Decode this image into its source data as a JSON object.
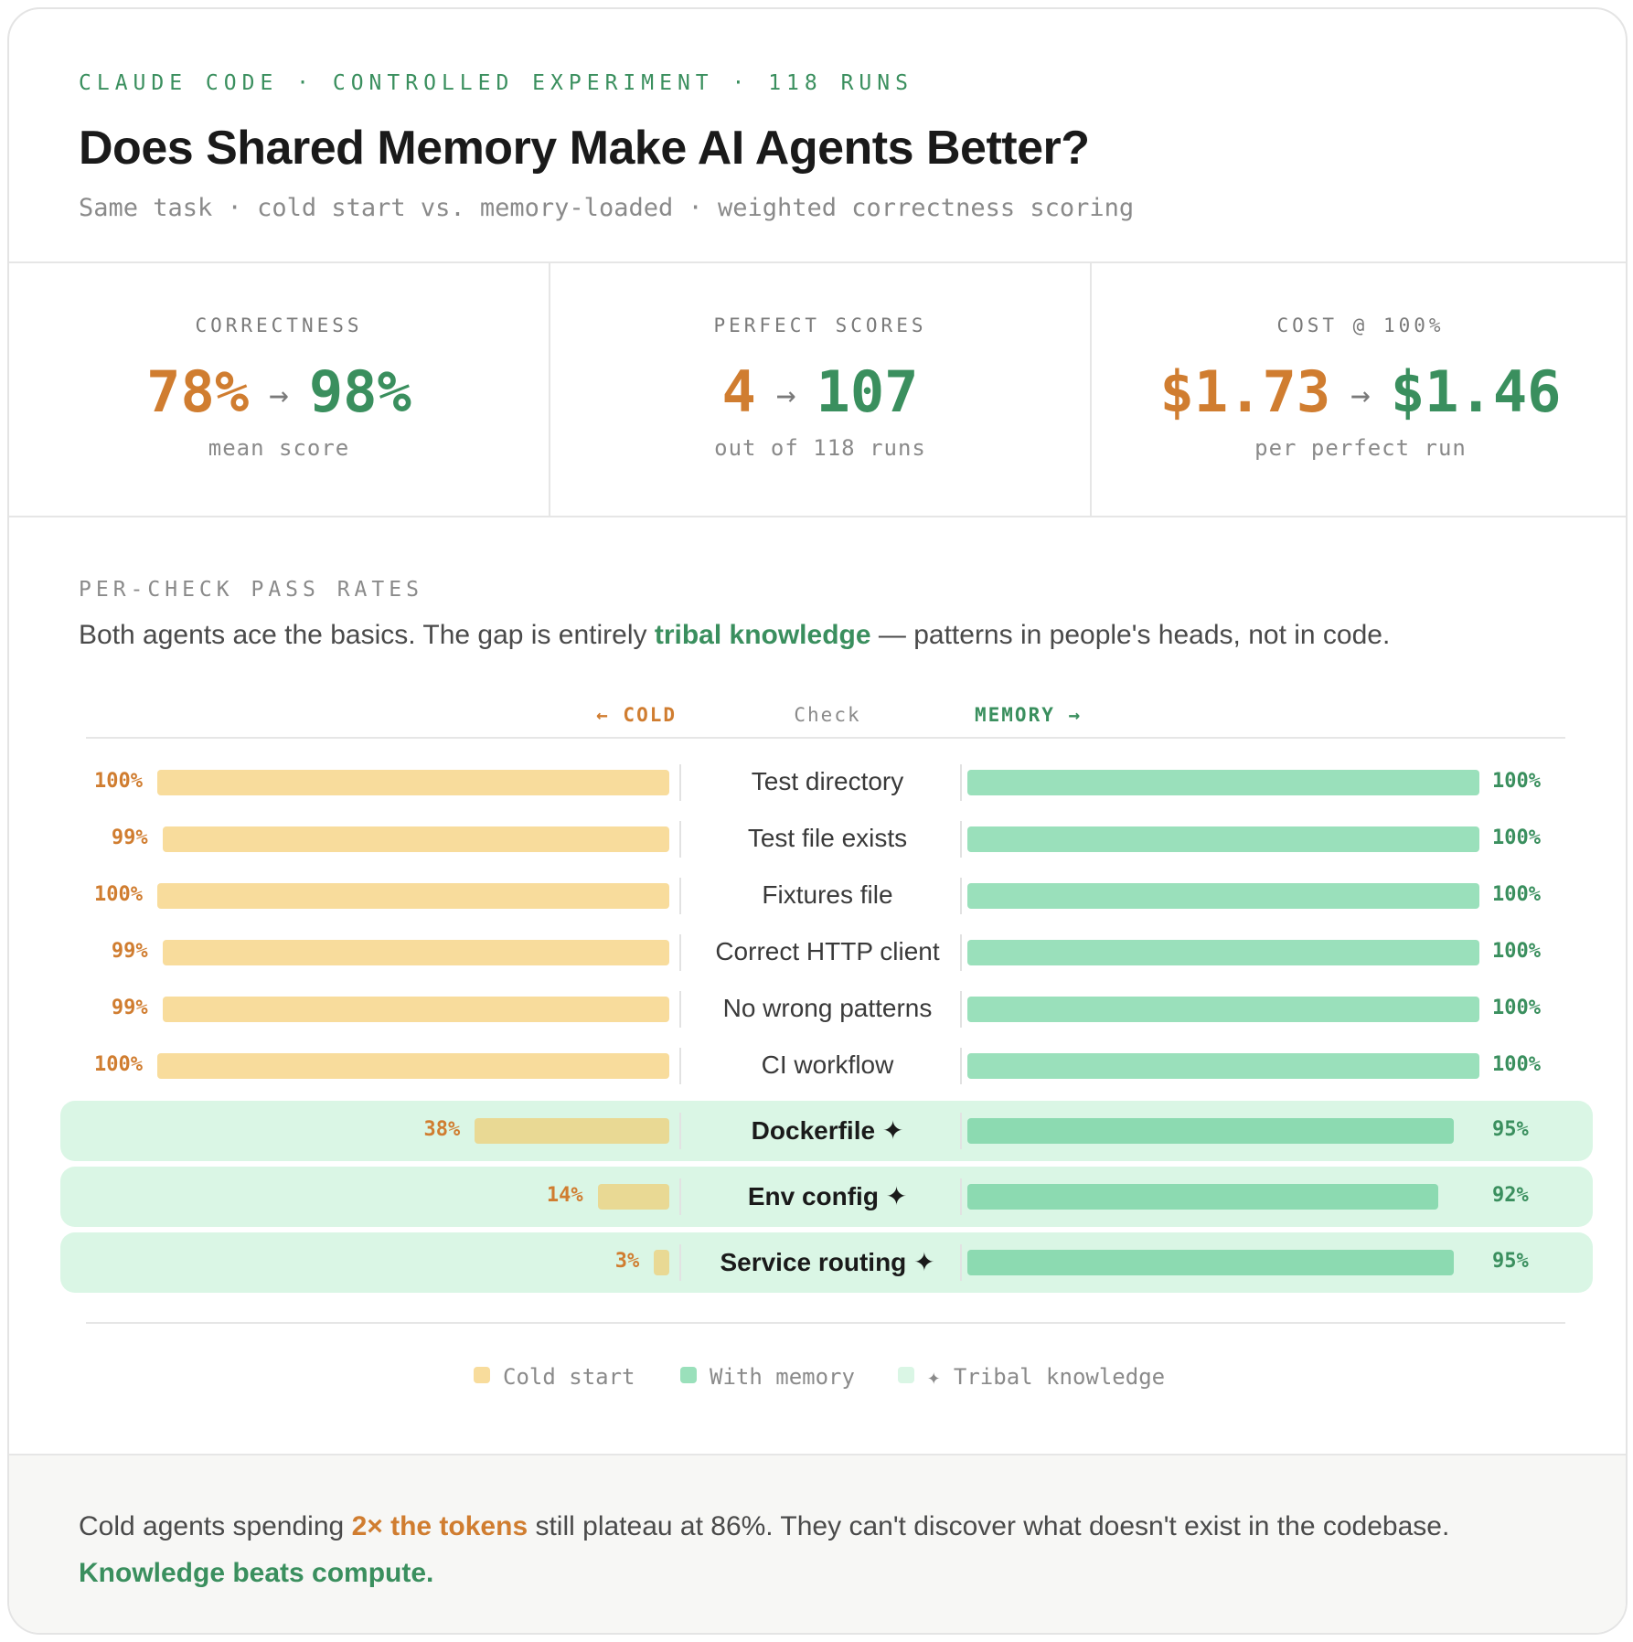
{
  "header": {
    "eyebrow": "CLAUDE CODE · CONTROLLED EXPERIMENT · 118 RUNS",
    "title": "Does Shared Memory Make AI Agents Better?",
    "subtitle": "Same task · cold start vs. memory-loaded · weighted correctness scoring"
  },
  "stats": [
    {
      "label": "CORRECTNESS",
      "from": "78%",
      "arrow": "→",
      "to": "98%",
      "sub": "mean score"
    },
    {
      "label": "PERFECT SCORES",
      "from": "4",
      "arrow": "→",
      "to": "107",
      "sub": "out of 118 runs"
    },
    {
      "label": "COST @ 100%",
      "from": "$1.73",
      "arrow": "→",
      "to": "$1.46",
      "sub": "per perfect run"
    }
  ],
  "section": {
    "label": "PER-CHECK PASS RATES",
    "desc_before": "Both agents ace the basics. The gap is entirely ",
    "desc_highlight": "tribal knowledge",
    "desc_after": " — patterns in people's heads, not in code."
  },
  "columns": {
    "cold": "← COLD",
    "check": "Check",
    "memory": "MEMORY →"
  },
  "chart_data": {
    "type": "bar",
    "orientation": "diverging-horizontal",
    "categories": [
      "Test directory",
      "Test file exists",
      "Fixtures file",
      "Correct HTTP client",
      "No wrong patterns",
      "CI workflow",
      "Dockerfile ✦",
      "Env config ✦",
      "Service routing ✦"
    ],
    "series": [
      {
        "name": "Cold start",
        "values": [
          100,
          99,
          100,
          99,
          99,
          100,
          38,
          14,
          3
        ],
        "labels": [
          "100%",
          "99%",
          "100%",
          "99%",
          "99%",
          "100%",
          "38%",
          "14%",
          "3%"
        ],
        "color": "#f8dc9c"
      },
      {
        "name": "With memory",
        "values": [
          100,
          100,
          100,
          100,
          100,
          100,
          95,
          92,
          95
        ],
        "labels": [
          "100%",
          "100%",
          "100%",
          "100%",
          "100%",
          "100%",
          "95%",
          "92%",
          "95%"
        ],
        "color": "#9ae0bb"
      }
    ],
    "tribal": [
      false,
      false,
      false,
      false,
      false,
      false,
      true,
      true,
      true
    ],
    "xlim": [
      0,
      100
    ],
    "legend": [
      {
        "label": "Cold start",
        "color": "#f8dc9c"
      },
      {
        "label": "With memory",
        "color": "#9ae0bb"
      },
      {
        "label": "✦ Tribal knowledge",
        "color": "#daf6e5"
      }
    ],
    "legend_position": "bottom-center"
  },
  "footer": {
    "text_before": "Cold agents spending ",
    "highlight": "2× the tokens",
    "text_after": " still plateau at 86%. They can't discover what doesn't exist in the codebase.",
    "conclusion": "Knowledge beats compute."
  }
}
